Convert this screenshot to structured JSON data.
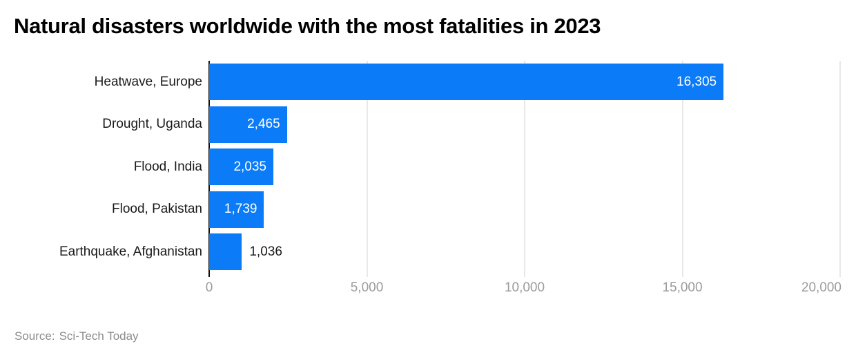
{
  "title": "Natural disasters worldwide with the most fatalities in 2023",
  "source": {
    "label": "Source:",
    "name": "Sci-Tech Today"
  },
  "colors": {
    "bar": "#0b7bf8",
    "axis_line": "#111111",
    "gridline": "#e8e8e8",
    "tick_label": "#9b9b9b",
    "category_label": "#1a1a1a",
    "value_inside": "#ffffff",
    "value_outside": "#1a1a1a",
    "source_text": "#8c8c8c",
    "background": "#ffffff"
  },
  "chart_data": {
    "type": "bar",
    "orientation": "horizontal",
    "title": "Natural disasters worldwide with the most fatalities in 2023",
    "xlabel": "",
    "ylabel": "",
    "categories": [
      "Heatwave, Europe",
      "Drought, Uganda",
      "Flood, India",
      "Flood, Pakistan",
      "Earthquake, Afghanistan"
    ],
    "values": [
      16305,
      2465,
      2035,
      1739,
      1036
    ],
    "value_labels": [
      "16,305",
      "2,465",
      "2,035",
      "1,739",
      "1,036"
    ],
    "xlim": [
      0,
      20000
    ],
    "xticks": [
      0,
      5000,
      10000,
      15000,
      20000
    ],
    "xtick_labels": [
      "0",
      "5,000",
      "10,000",
      "15,000",
      "20,000"
    ],
    "grid": true,
    "legend": false
  }
}
